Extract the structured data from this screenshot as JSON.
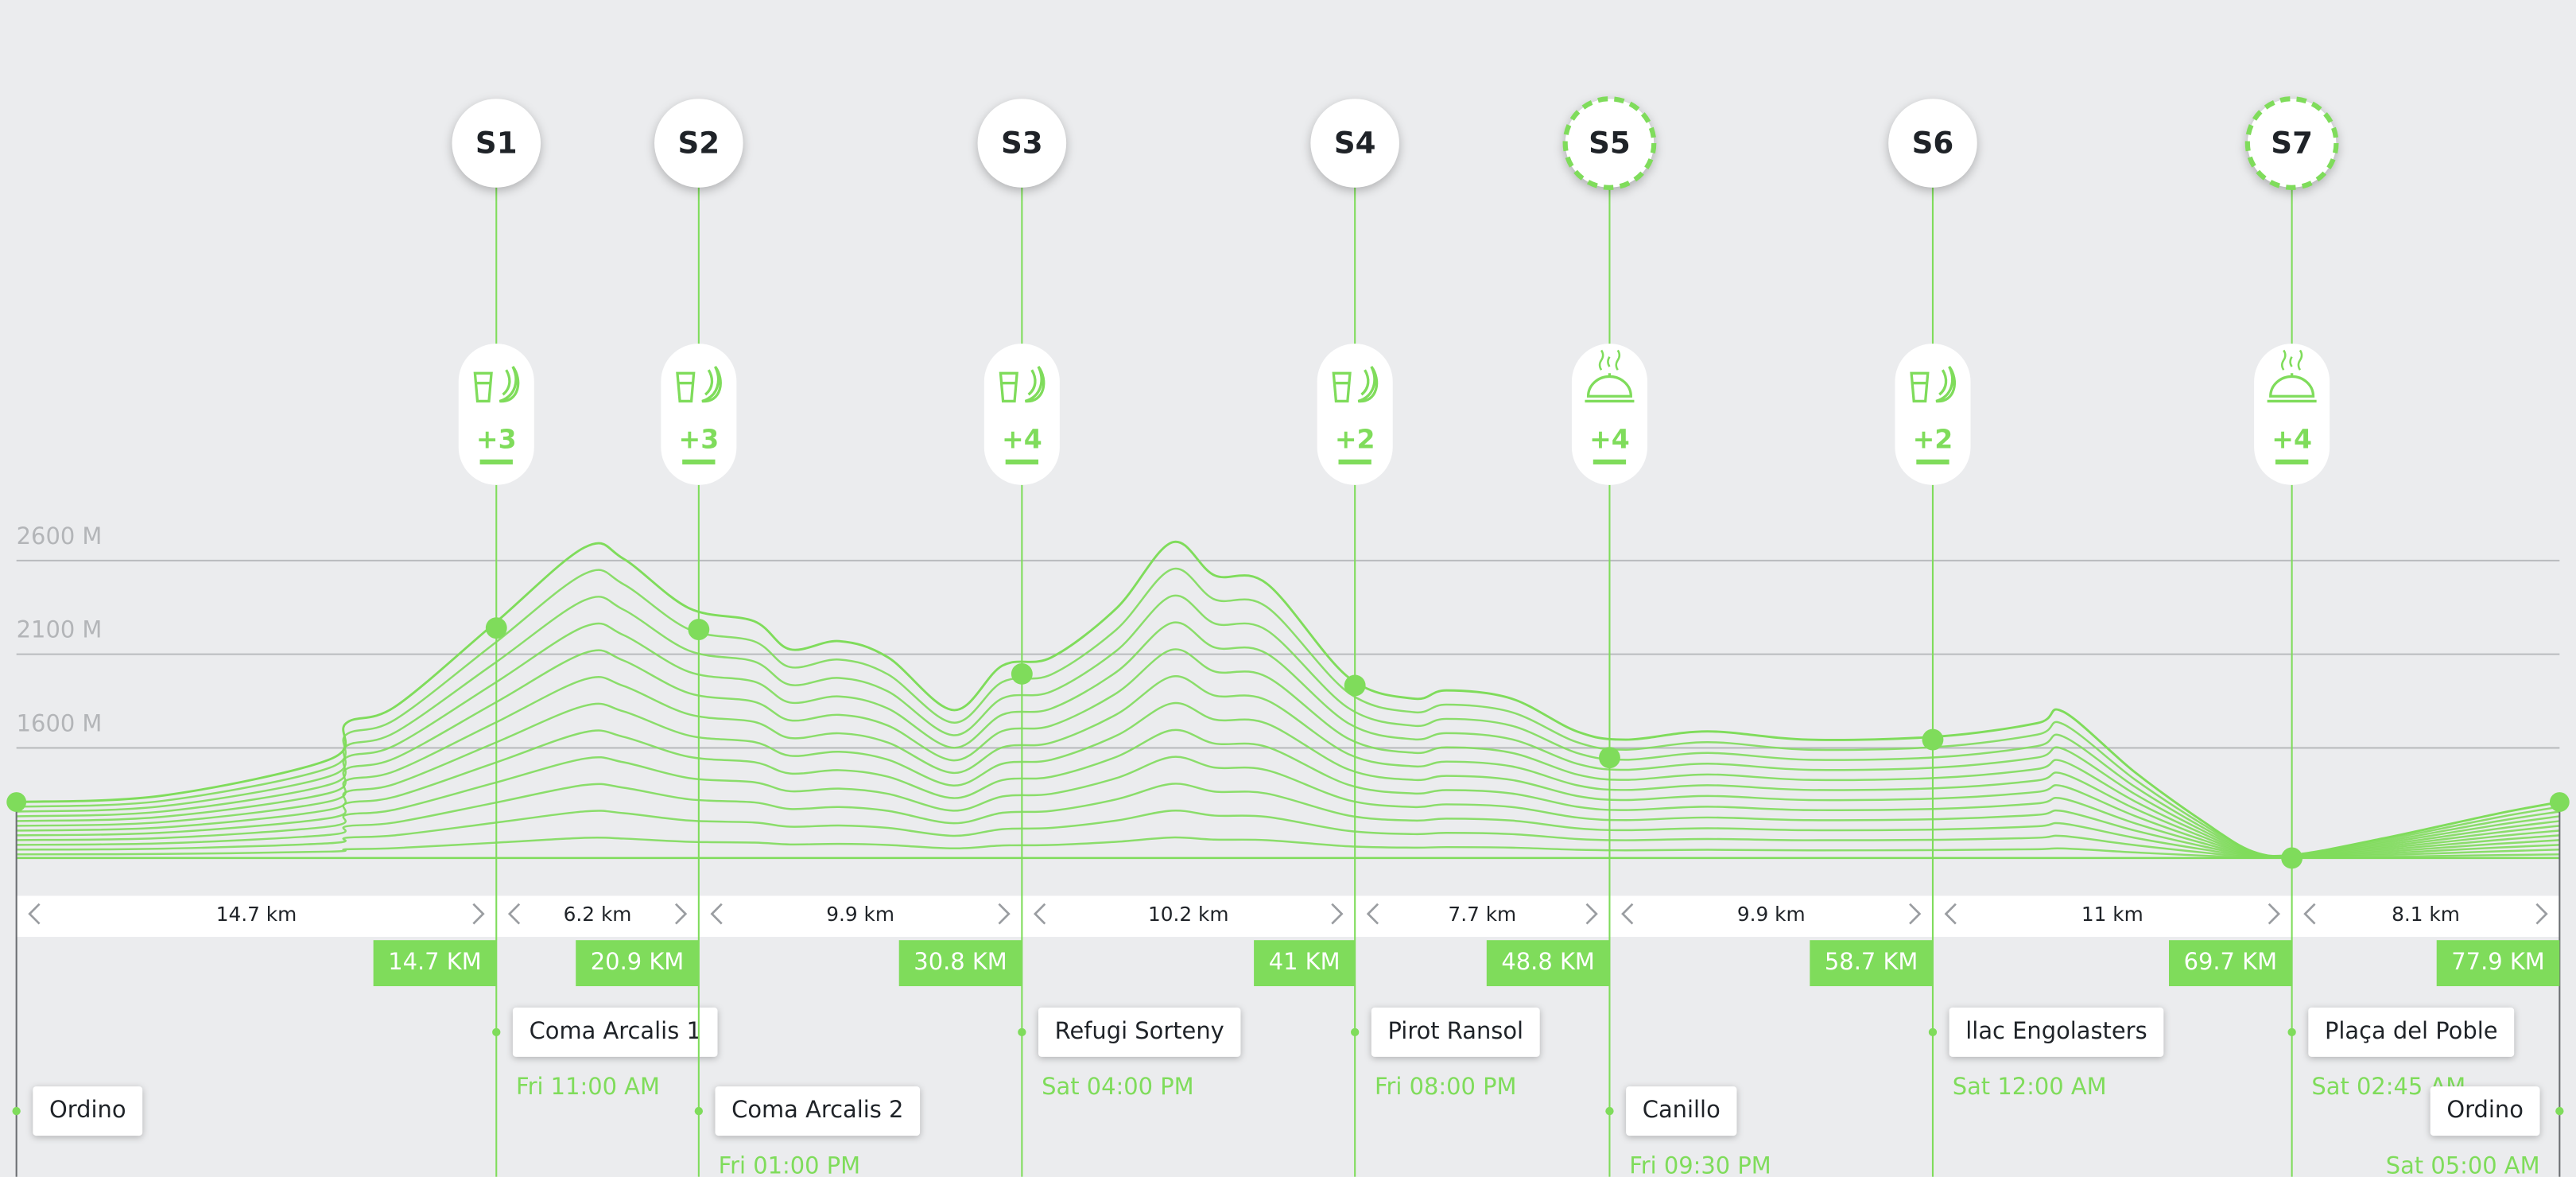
{
  "axis": {
    "yticks": [
      {
        "value": 2600,
        "label": "2600 M"
      },
      {
        "value": 2100,
        "label": "2100 M"
      },
      {
        "value": 1600,
        "label": "1600 M"
      }
    ]
  },
  "profile": {
    "km": [
      0,
      4.5,
      9.6,
      10.1,
      11.6,
      14.6,
      17.4,
      18.6,
      20.6,
      22.6,
      23.7,
      25.2,
      26.7,
      28.7,
      30.2,
      31.7,
      33.7,
      35.4,
      36.7,
      38.3,
      40.8,
      42.8,
      43.8,
      45.8,
      47.8,
      49.3,
      51.8,
      54.9,
      58.9,
      61.9,
      62.7,
      64.9,
      67,
      68.5,
      69.8,
      72.5,
      76,
      77.9
    ],
    "elevation": [
      1311,
      1346,
      1539,
      1732,
      1820,
      2258,
      2670,
      2609,
      2346,
      2276,
      2126,
      2170,
      2083,
      1802,
      2039,
      2083,
      2346,
      2697,
      2521,
      2477,
      1977,
      1863,
      1907,
      1863,
      1688,
      1644,
      1688,
      1644,
      1661,
      1732,
      1793,
      1469,
      1205,
      1047,
      1030,
      1117,
      1249,
      1311
    ]
  },
  "start": {
    "place": "Ordino",
    "km": 0,
    "elevation": 1311
  },
  "stations": [
    {
      "label": "S1",
      "km": 14.7,
      "km_label": "14.7 KM",
      "elevation": 2240,
      "supply": "snack",
      "supply_label": "+3",
      "place": "Coma Arcalis 1",
      "time": "Fri 11:00 AM",
      "dashed": false
    },
    {
      "label": "S2",
      "km": 20.9,
      "km_label": "20.9 KM",
      "elevation": 2232,
      "supply": "snack",
      "supply_label": "+3",
      "place": "Coma Arcalis 2",
      "time": "Fri 01:00 PM",
      "dashed": false
    },
    {
      "label": "S3",
      "km": 30.8,
      "km_label": "30.8 KM",
      "elevation": 1995,
      "supply": "snack",
      "supply_label": "+4",
      "place": "Refugi Sorteny",
      "time": "Sat 04:00 PM",
      "dashed": false
    },
    {
      "label": "S4",
      "km": 41,
      "km_label": "41 KM",
      "elevation": 1933,
      "supply": "snack",
      "supply_label": "+2",
      "place": "Pirot Ransol",
      "time": "Fri 08:00 PM",
      "dashed": false
    },
    {
      "label": "S5",
      "km": 48.8,
      "km_label": "48.8 KM",
      "elevation": 1548,
      "supply": "meal",
      "supply_label": "+4",
      "place": "Canillo",
      "time": "Fri 09:30 PM",
      "dashed": true
    },
    {
      "label": "S6",
      "km": 58.7,
      "km_label": "58.7 KM",
      "elevation": 1644,
      "supply": "snack",
      "supply_label": "+2",
      "place": "llac Engolasters",
      "time": "Sat 12:00 AM",
      "dashed": false
    },
    {
      "label": "S7",
      "km": 69.7,
      "km_label": "69.7 KM",
      "elevation": 1012,
      "supply": "meal",
      "supply_label": "+4",
      "place": "Plaça del Poble",
      "time": "Sat 02:45 AM",
      "dashed": true
    }
  ],
  "finish": {
    "place": "Ordino",
    "km": 77.9,
    "km_label": "77.9 KM",
    "elevation": 1311,
    "time": "Sat 05:00 AM"
  },
  "segments": [
    "14.7 km",
    "6.2 km",
    "9.9 km",
    "10.2 km",
    "7.7 km",
    "9.9 km",
    "11 km",
    "8.1 km"
  ]
}
